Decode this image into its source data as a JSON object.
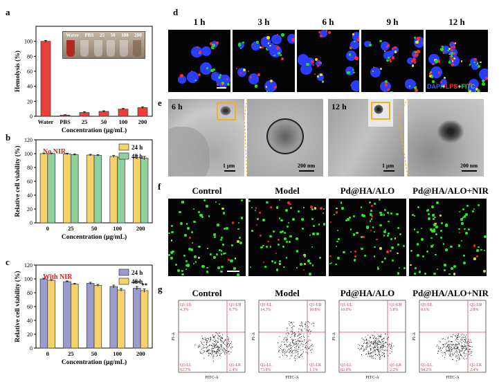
{
  "panels": {
    "a": "a",
    "b": "b",
    "c": "c",
    "d": "d",
    "e": "e",
    "f": "f",
    "g": "g"
  },
  "chart_data": [
    {
      "type": "bar",
      "panel": "a",
      "ylabel": "Hemolysis (%)",
      "xlabel": "Concentration (μg/mL)",
      "categories": [
        "Water",
        "PBS",
        "25",
        "50",
        "100",
        "200"
      ],
      "values": [
        100,
        1.5,
        5,
        6.5,
        9.5,
        11.5
      ],
      "errors": [
        1.2,
        0.5,
        1,
        0.8,
        1,
        1.2
      ],
      "ylim": [
        0,
        120
      ],
      "yticks": [
        "0",
        "20",
        "40",
        "60",
        "80",
        "100"
      ],
      "inset_labels": [
        "Water",
        "PBS",
        "25",
        "50",
        "100",
        "200"
      ],
      "bar_color": "#e8413c"
    },
    {
      "type": "bar",
      "panel": "b",
      "annotation": "No NIR",
      "ylabel": "Relative cell viability (%)",
      "xlabel": "Concentration (μg/mL)",
      "categories": [
        "0",
        "25",
        "50",
        "100",
        "200"
      ],
      "ylim": [
        0,
        120
      ],
      "yticks": [
        "0",
        "20",
        "40",
        "60",
        "80",
        "100",
        "120"
      ],
      "legend": "top-right",
      "series": [
        {
          "name": "24 h",
          "color": "#f5d26a",
          "values": [
            100,
            99.5,
            98,
            96,
            94.5
          ],
          "errors": [
            0.8,
            1,
            1,
            1.5,
            2.5
          ]
        },
        {
          "name": "48 h",
          "color": "#8fd19e",
          "values": [
            100,
            98.5,
            97.5,
            95,
            93.5
          ],
          "errors": [
            0.8,
            1,
            1,
            1.5,
            2.5
          ]
        }
      ]
    },
    {
      "type": "bar",
      "panel": "c",
      "annotation": "With NIR",
      "ylabel": "Relative cell viability (%)",
      "xlabel": "Concentration (μg/mL)",
      "categories": [
        "0",
        "25",
        "50",
        "100",
        "200"
      ],
      "ylim": [
        0,
        120
      ],
      "yticks": [
        "0",
        "20",
        "40",
        "60",
        "80",
        "100",
        "120"
      ],
      "legend": "top-right",
      "significance": [
        {
          "category": "200",
          "series": "24 h",
          "text": "**"
        },
        {
          "category": "200",
          "series": "48 h",
          "text": "**"
        }
      ],
      "series": [
        {
          "name": "24 h",
          "color": "#9a9ccc",
          "values": [
            100,
            96,
            93.5,
            89,
            86.5
          ],
          "errors": [
            1,
            1,
            1.5,
            2,
            2.5
          ]
        },
        {
          "name": "48 h",
          "color": "#f5d26a",
          "values": [
            98,
            92.5,
            90.5,
            84,
            83
          ],
          "errors": [
            1,
            1,
            1.5,
            2,
            2.5
          ]
        }
      ]
    }
  ],
  "panel_d": {
    "times": [
      "1 h",
      "3 h",
      "6 h",
      "9 h",
      "12 h"
    ],
    "stain": [
      "DAPI",
      "+",
      "LPS",
      "+",
      "FITC"
    ],
    "stain_colors": [
      "#3b5bff",
      "#ffffff",
      "#ff3030",
      "#ffffff",
      "#33dd33"
    ]
  },
  "panel_e": {
    "time_left": "6 h",
    "time_right": "12 h",
    "scales": [
      "1 μm",
      "200 nm",
      "1 μm",
      "200 nm"
    ]
  },
  "groups": [
    "Control",
    "Model",
    "Pd@HA/ALO",
    "Pd@HA/ALO+NIR"
  ],
  "panel_g": {
    "xaxis": "FITC-A",
    "yaxis": "PI-A",
    "quadrants": [
      {
        "ul": "Q1-UL",
        "ulv": "4.3%",
        "ur": "Q1-UR",
        "urv": "0.7%",
        "ll": "Q1-LL",
        "llv": "92.7%",
        "lr": "Q1-LR",
        "lrv": "2.4%"
      },
      {
        "ul": "Q1-UL",
        "ulv": "14.3%",
        "ur": "Q1-UR",
        "urv": "10.8%",
        "ll": "Q1-LL",
        "llv": "73.8%",
        "lr": "Q1-LR",
        "lrv": "1.1%"
      },
      {
        "ul": "Q1-UL",
        "ulv": "10.0%",
        "ur": "Q1-UR",
        "urv": "5.8%",
        "ll": "Q1-LL",
        "llv": "82.0%",
        "lr": "Q1-LR",
        "lrv": "2.2%"
      },
      {
        "ul": "Q1-UL",
        "ulv": "0.6%",
        "ur": "Q1-UR",
        "urv": "2.8%",
        "ll": "Q1-LL",
        "llv": "94.2%",
        "lr": "Q1-LR",
        "lrv": "2.4%"
      }
    ]
  }
}
